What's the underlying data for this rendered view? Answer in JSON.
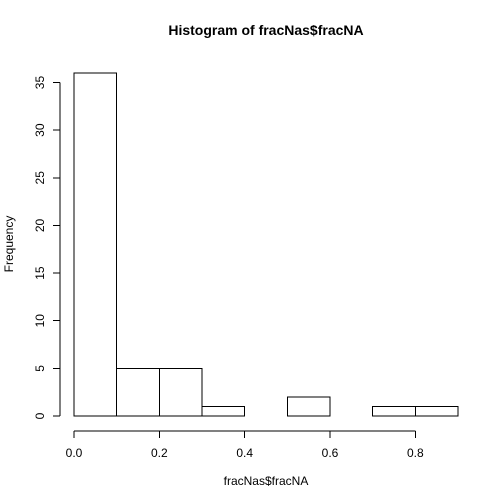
{
  "chart_data": {
    "type": "bar",
    "title": "Histogram of fracNas$fracNA",
    "xlabel": "fracNas$fracNA",
    "ylabel": "Frequency",
    "bins": [
      {
        "x0": 0.0,
        "x1": 0.1,
        "count": 36
      },
      {
        "x0": 0.1,
        "x1": 0.2,
        "count": 5
      },
      {
        "x0": 0.2,
        "x1": 0.3,
        "count": 5
      },
      {
        "x0": 0.3,
        "x1": 0.4,
        "count": 1
      },
      {
        "x0": 0.4,
        "x1": 0.5,
        "count": 0
      },
      {
        "x0": 0.5,
        "x1": 0.6,
        "count": 2
      },
      {
        "x0": 0.6,
        "x1": 0.7,
        "count": 0
      },
      {
        "x0": 0.7,
        "x1": 0.8,
        "count": 1
      },
      {
        "x0": 0.8,
        "x1": 0.9,
        "count": 1
      }
    ],
    "xlim": [
      0,
      0.9
    ],
    "ylim": [
      0,
      36
    ],
    "x_ticks": [
      0.0,
      0.2,
      0.4,
      0.6,
      0.8
    ],
    "x_tick_labels": [
      "0.0",
      "0.2",
      "0.4",
      "0.6",
      "0.8"
    ],
    "y_ticks": [
      0,
      5,
      10,
      15,
      20,
      25,
      30,
      35
    ],
    "y_tick_labels": [
      "0",
      "5",
      "10",
      "15",
      "20",
      "25",
      "30",
      "35"
    ],
    "bar_fill": "#ffffff",
    "bar_stroke": "#000000",
    "grid": false,
    "legend": "none"
  }
}
